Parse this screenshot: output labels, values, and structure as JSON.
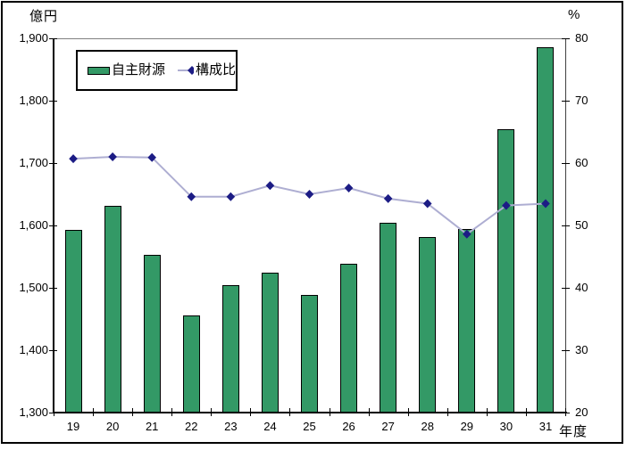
{
  "chart_data": {
    "type": "combo-bar-line",
    "title": "",
    "categories": [
      "19",
      "20",
      "21",
      "22",
      "23",
      "24",
      "25",
      "26",
      "27",
      "28",
      "29",
      "30",
      "31"
    ],
    "series": [
      {
        "name": "自主財源",
        "type": "bar",
        "axis": "left",
        "color": "#339966",
        "values": [
          1593,
          1632,
          1553,
          1456,
          1505,
          1524,
          1489,
          1539,
          1604,
          1581,
          1595,
          1755,
          1886
        ]
      },
      {
        "name": "構成比",
        "type": "line",
        "axis": "right",
        "line_color": "#aeaed2",
        "marker": "diamond",
        "marker_color": "#1c1c85",
        "values": [
          60.7,
          61.0,
          60.9,
          54.6,
          54.6,
          56.4,
          55.0,
          56.0,
          54.3,
          53.5,
          48.6,
          53.2,
          53.5
        ]
      }
    ],
    "left_axis": {
      "label": "億円",
      "min": 1300,
      "max": 1900,
      "step": 100,
      "tick_labels": [
        "1,900",
        "1,800",
        "1,700",
        "1,600",
        "1,500",
        "1,400",
        "1,300"
      ]
    },
    "right_axis": {
      "label": "%",
      "min": 20,
      "max": 80,
      "step": 10,
      "tick_labels": [
        "80",
        "70",
        "60",
        "50",
        "40",
        "30",
        "20"
      ]
    },
    "x_axis": {
      "label": "年度",
      "tick_labels": [
        "19",
        "20",
        "21",
        "22",
        "23",
        "24",
        "25",
        "26",
        "27",
        "28",
        "29",
        "30",
        "31"
      ]
    },
    "legend": {
      "position": "top-left",
      "entries": [
        "自主財源",
        "構成比"
      ]
    },
    "grid": false,
    "background": "#ffffff"
  }
}
